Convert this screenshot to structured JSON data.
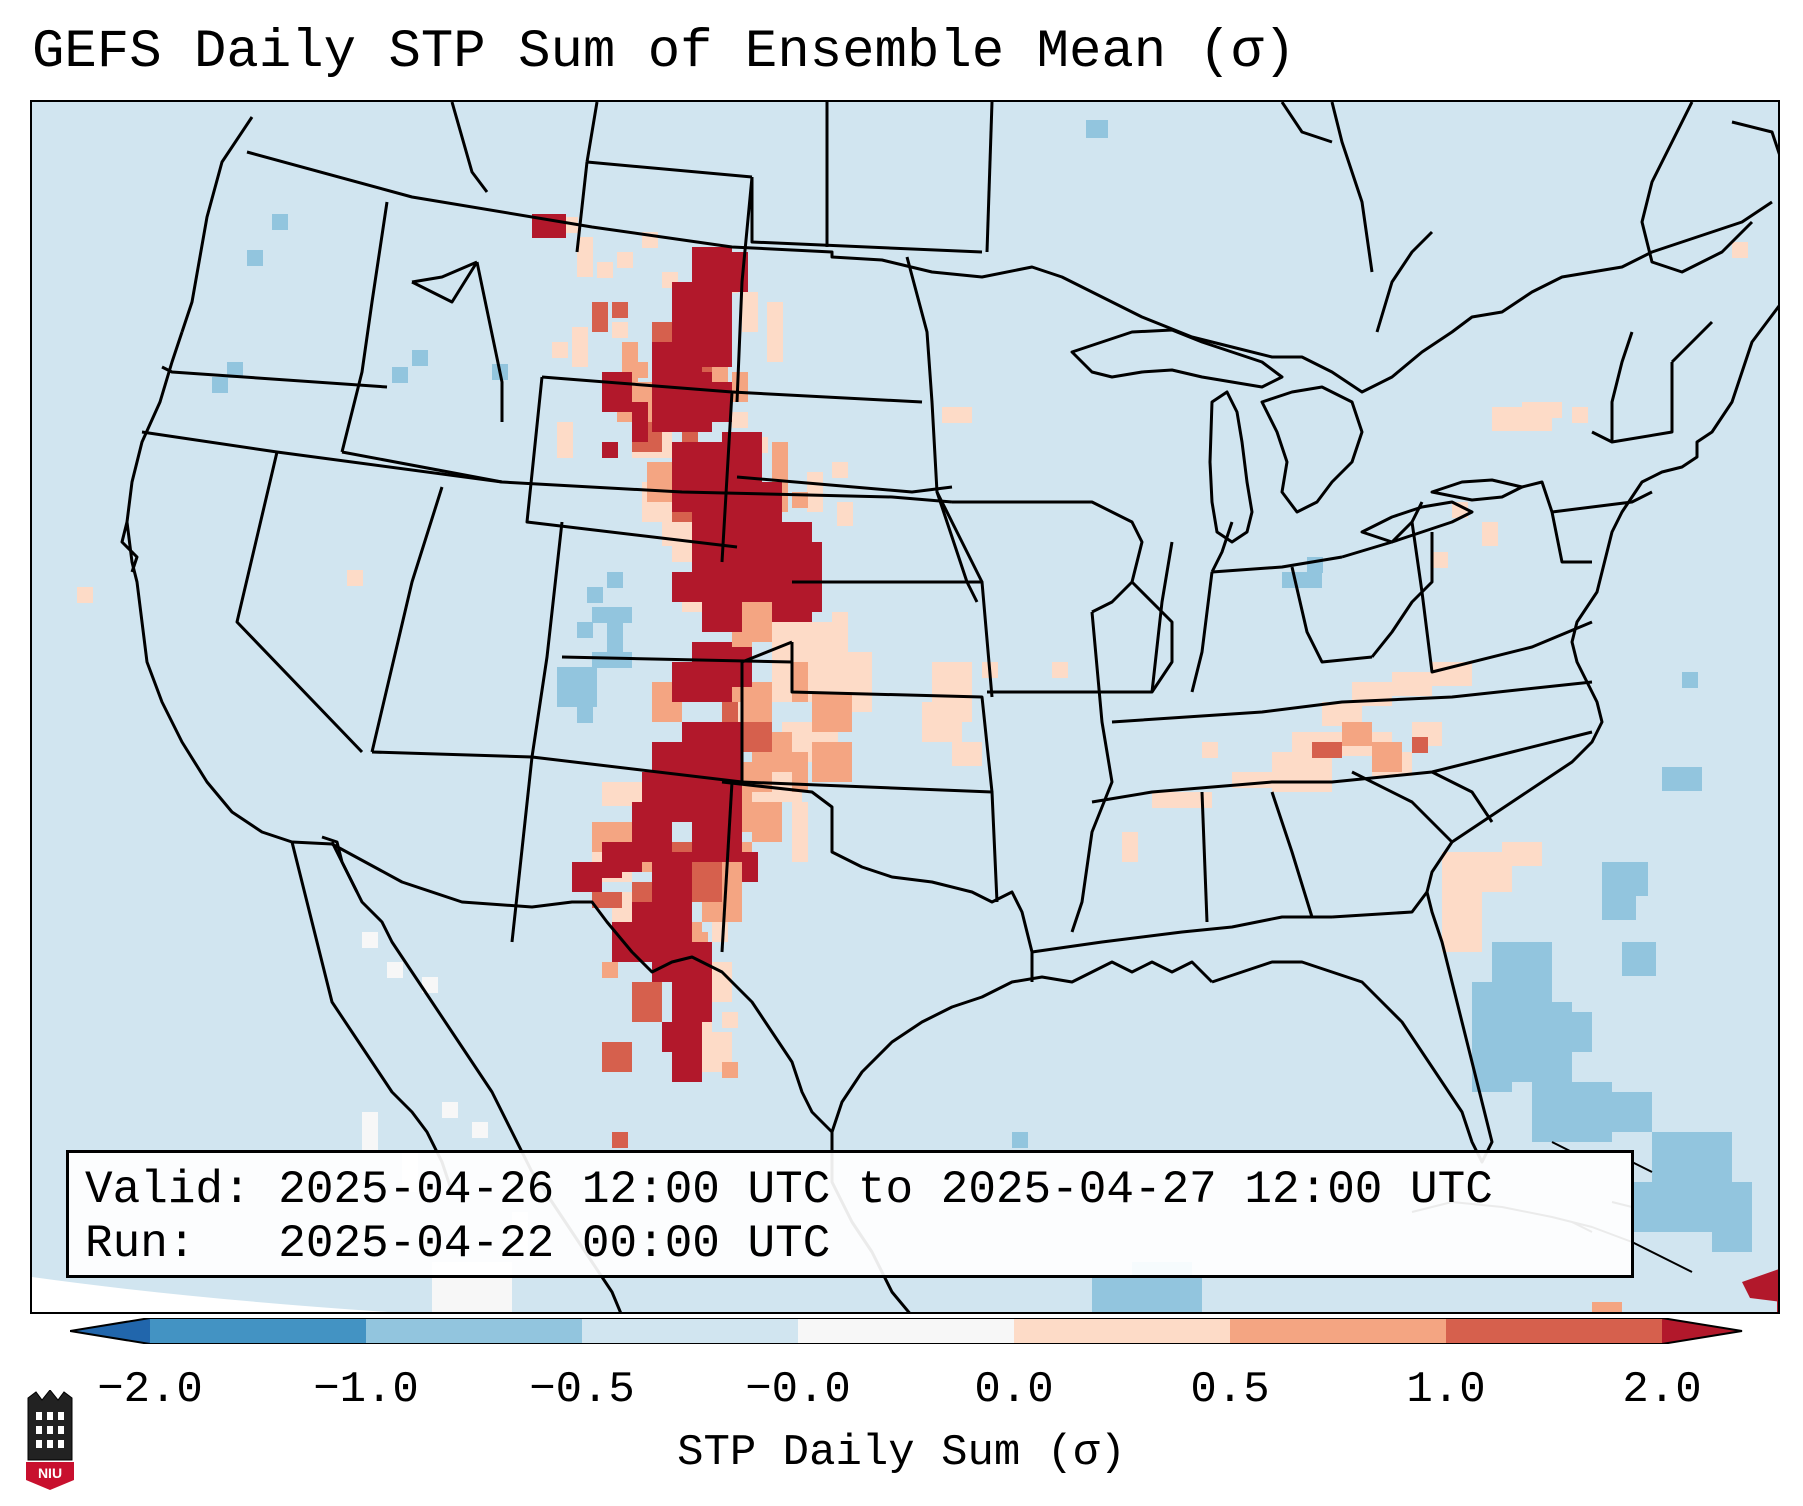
{
  "title": "GEFS Daily STP Sum of Ensemble Mean (σ)",
  "info": {
    "valid_line": "Valid: 2025-04-26 12:00 UTC to 2025-04-27 12:00 UTC",
    "run_line": "Run:   2025-04-22 00:00 UTC"
  },
  "colorbar": {
    "label": "STP Daily Sum (σ)",
    "ticks": [
      "−2.0",
      "−1.0",
      "−0.5",
      "−0.0",
      "0.0",
      "0.5",
      "1.0",
      "2.0"
    ],
    "colors": [
      "#4393c3",
      "#92c5de",
      "#d1e5f0",
      "#f7f7f7",
      "#fddbc7",
      "#f4a582",
      "#d6604d"
    ],
    "under_color": "#2166ac",
    "over_color": "#b2182b"
  },
  "map": {
    "ocean_land_color": "#d1e5f0",
    "boundary_color": "#000000"
  },
  "logo": {
    "text": "NIU"
  }
}
